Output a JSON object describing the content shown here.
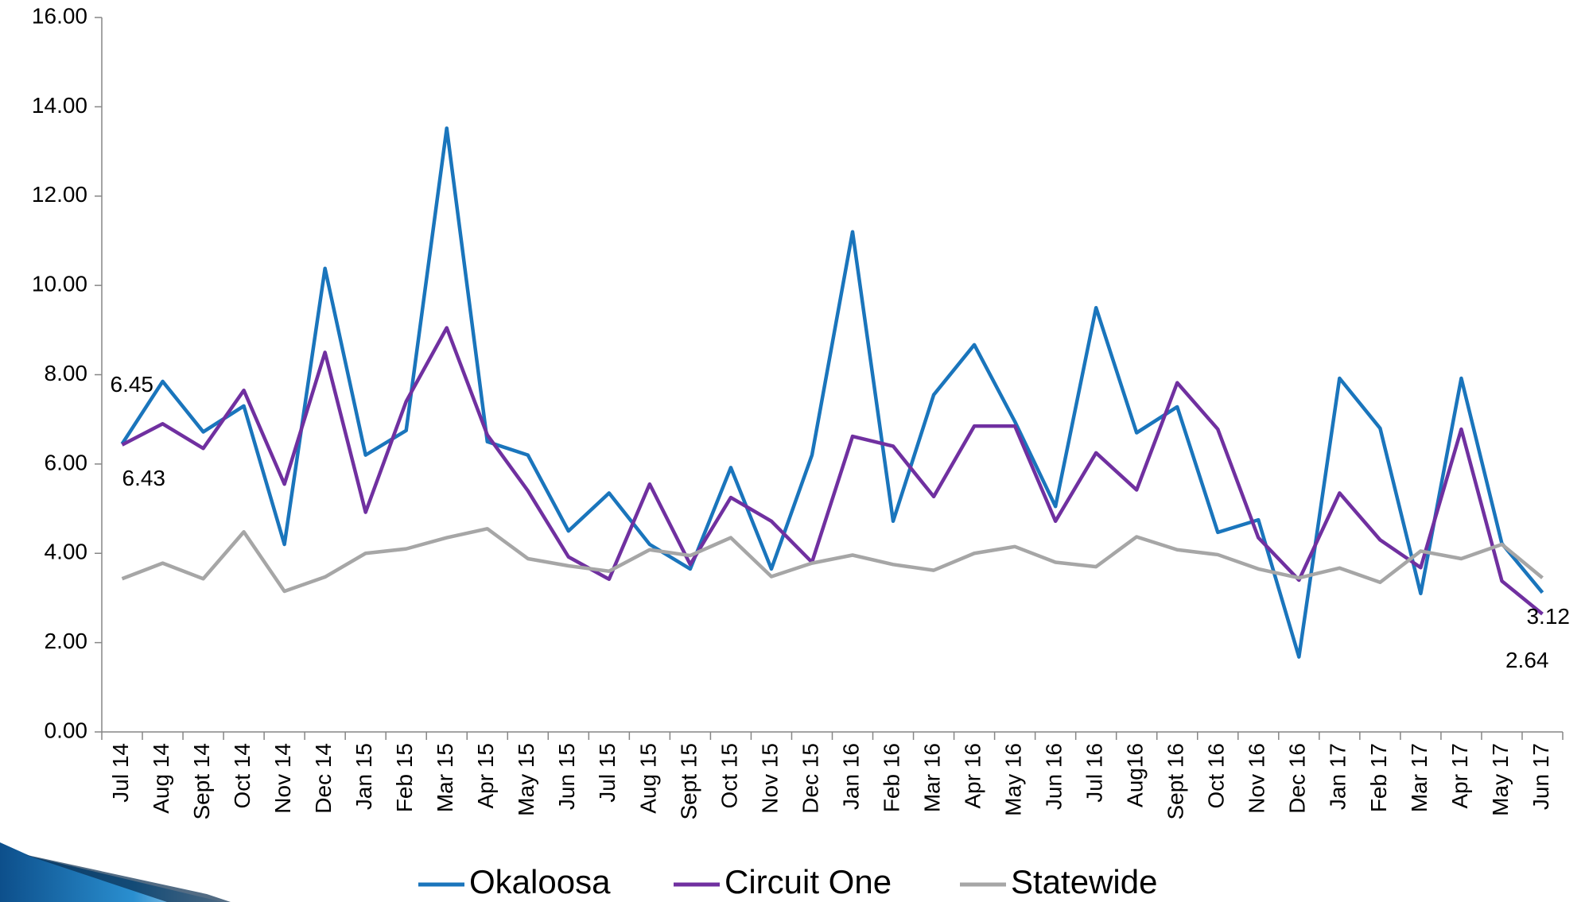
{
  "chart_data": {
    "type": "line",
    "categories": [
      "Jul 14",
      "Aug 14",
      "Sept 14",
      "Oct 14",
      "Nov 14",
      "Dec 14",
      "Jan 15",
      "Feb 15",
      "Mar 15",
      "Apr 15",
      "May 15",
      "Jun 15",
      "Jul 15",
      "Aug 15",
      "Sept 15",
      "Oct 15",
      "Nov 15",
      "Dec 15",
      "Jan 16",
      "Feb 16",
      "Mar 16",
      "Apr 16",
      "May 16",
      "Jun 16",
      "Jul 16",
      "Aug16",
      "Sept 16",
      "Oct 16",
      "Nov 16",
      "Dec 16",
      "Jan 17",
      "Feb 17",
      "Mar 17",
      "Apr 17",
      "May 17",
      "Jun 17"
    ],
    "series": [
      {
        "name": "Okaloosa",
        "color": "#1a75bc",
        "values": [
          6.45,
          7.85,
          6.72,
          7.3,
          4.2,
          10.38,
          6.2,
          6.75,
          13.52,
          6.5,
          6.2,
          4.5,
          5.35,
          4.2,
          3.65,
          5.92,
          3.65,
          6.2,
          11.2,
          4.72,
          7.55,
          8.67,
          6.95,
          5.05,
          9.5,
          6.7,
          7.28,
          4.47,
          4.75,
          1.68,
          7.92,
          6.8,
          3.1,
          7.92,
          4.22,
          3.12
        ]
      },
      {
        "name": "Circuit One",
        "color": "#7030a0",
        "values": [
          6.43,
          6.9,
          6.35,
          7.65,
          5.55,
          8.5,
          4.92,
          7.4,
          9.05,
          6.65,
          5.4,
          3.92,
          3.42,
          5.55,
          3.75,
          5.25,
          4.72,
          3.8,
          6.62,
          6.4,
          5.27,
          6.85,
          6.85,
          4.72,
          6.25,
          5.42,
          7.82,
          6.78,
          4.35,
          3.4,
          5.35,
          4.3,
          3.68,
          6.78,
          3.38,
          2.64
        ]
      },
      {
        "name": "Statewide",
        "color": "#a6a6a6",
        "values": [
          3.43,
          3.78,
          3.43,
          4.48,
          3.15,
          3.47,
          4.0,
          4.1,
          4.35,
          4.55,
          3.88,
          3.72,
          3.6,
          4.08,
          3.95,
          4.35,
          3.48,
          3.78,
          3.96,
          3.75,
          3.62,
          4.0,
          4.15,
          3.8,
          3.7,
          4.37,
          4.08,
          3.97,
          3.65,
          3.45,
          3.67,
          3.35,
          4.05,
          3.88,
          4.2,
          3.45
        ]
      }
    ],
    "ylim": [
      0,
      16
    ],
    "yticks": [
      {
        "value": 0,
        "label": "0.00"
      },
      {
        "value": 2,
        "label": "2.00"
      },
      {
        "value": 4,
        "label": "4.00"
      },
      {
        "value": 6,
        "label": "6.00"
      },
      {
        "value": 8,
        "label": "8.00"
      },
      {
        "value": 10,
        "label": "10.00"
      },
      {
        "value": 12,
        "label": "12.00"
      },
      {
        "value": 14,
        "label": "14.00"
      },
      {
        "value": 16,
        "label": "16.00"
      }
    ],
    "grid": false,
    "legend": "bottom"
  }
}
